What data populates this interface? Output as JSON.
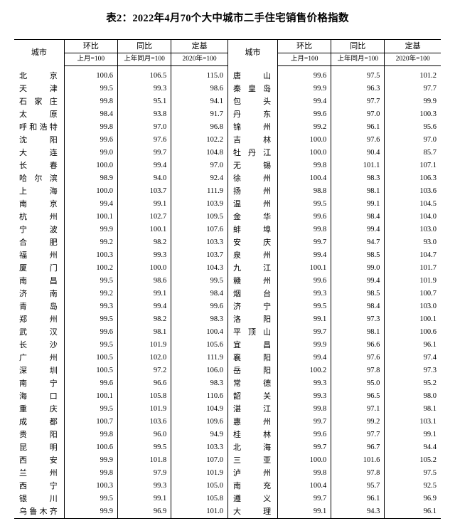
{
  "title": "表2：2022年4月70个大中城市二手住宅销售价格指数",
  "headers": {
    "city": "城市",
    "mom": "环比",
    "yoy": "同比",
    "base": "定基",
    "sub_mom": "上月=100",
    "sub_yoy": "上年同月=100",
    "sub_base": "2020年=100"
  },
  "left": [
    {
      "c": "北　　京",
      "m": "100.6",
      "y": "106.5",
      "b": "115.0"
    },
    {
      "c": "天　　津",
      "m": "99.5",
      "y": "99.3",
      "b": "98.6"
    },
    {
      "c": "石 家 庄",
      "m": "99.8",
      "y": "95.1",
      "b": "94.1"
    },
    {
      "c": "太　　原",
      "m": "98.4",
      "y": "93.8",
      "b": "91.7"
    },
    {
      "c": "呼和浩特",
      "m": "99.8",
      "y": "97.0",
      "b": "96.8"
    },
    {
      "c": "沈　　阳",
      "m": "99.6",
      "y": "97.6",
      "b": "102.2"
    },
    {
      "c": "大　　连",
      "m": "99.0",
      "y": "99.7",
      "b": "104.8"
    },
    {
      "c": "长　　春",
      "m": "100.0",
      "y": "99.4",
      "b": "97.0"
    },
    {
      "c": "哈 尔 滨",
      "m": "98.9",
      "y": "94.0",
      "b": "92.4"
    },
    {
      "c": "上　　海",
      "m": "100.0",
      "y": "103.7",
      "b": "111.9"
    },
    {
      "c": "南　　京",
      "m": "99.4",
      "y": "99.1",
      "b": "103.9"
    },
    {
      "c": "杭　　州",
      "m": "100.1",
      "y": "102.7",
      "b": "109.5"
    },
    {
      "c": "宁　　波",
      "m": "99.9",
      "y": "100.1",
      "b": "107.6"
    },
    {
      "c": "合　　肥",
      "m": "99.2",
      "y": "98.2",
      "b": "103.3"
    },
    {
      "c": "福　　州",
      "m": "100.3",
      "y": "99.3",
      "b": "103.7"
    },
    {
      "c": "厦　　门",
      "m": "100.2",
      "y": "100.0",
      "b": "104.3"
    },
    {
      "c": "南　　昌",
      "m": "99.5",
      "y": "98.6",
      "b": "99.5"
    },
    {
      "c": "济　　南",
      "m": "99.2",
      "y": "99.1",
      "b": "98.4"
    },
    {
      "c": "青　　岛",
      "m": "99.3",
      "y": "99.4",
      "b": "99.6"
    },
    {
      "c": "郑　　州",
      "m": "99.5",
      "y": "98.2",
      "b": "98.3"
    },
    {
      "c": "武　　汉",
      "m": "99.6",
      "y": "98.1",
      "b": "100.4"
    },
    {
      "c": "长　　沙",
      "m": "99.5",
      "y": "101.9",
      "b": "105.6"
    },
    {
      "c": "广　　州",
      "m": "100.5",
      "y": "102.0",
      "b": "111.9"
    },
    {
      "c": "深　　圳",
      "m": "100.5",
      "y": "97.2",
      "b": "106.0"
    },
    {
      "c": "南　　宁",
      "m": "99.6",
      "y": "96.6",
      "b": "98.3"
    },
    {
      "c": "海　　口",
      "m": "100.1",
      "y": "105.8",
      "b": "110.6"
    },
    {
      "c": "重　　庆",
      "m": "99.5",
      "y": "101.9",
      "b": "104.9"
    },
    {
      "c": "成　　都",
      "m": "100.7",
      "y": "103.6",
      "b": "109.6"
    },
    {
      "c": "贵　　阳",
      "m": "99.8",
      "y": "96.0",
      "b": "94.9"
    },
    {
      "c": "昆　　明",
      "m": "100.6",
      "y": "99.5",
      "b": "103.3"
    },
    {
      "c": "西　　安",
      "m": "99.9",
      "y": "101.8",
      "b": "107.0"
    },
    {
      "c": "兰　　州",
      "m": "99.8",
      "y": "97.9",
      "b": "101.9"
    },
    {
      "c": "西　　宁",
      "m": "100.3",
      "y": "99.3",
      "b": "105.0"
    },
    {
      "c": "银　　川",
      "m": "99.5",
      "y": "99.1",
      "b": "105.8"
    },
    {
      "c": "乌鲁木齐",
      "m": "99.9",
      "y": "96.9",
      "b": "101.0"
    }
  ],
  "right": [
    {
      "c": "唐　　山",
      "m": "99.6",
      "y": "97.5",
      "b": "101.2"
    },
    {
      "c": "秦 皇 岛",
      "m": "99.9",
      "y": "96.3",
      "b": "97.7"
    },
    {
      "c": "包　　头",
      "m": "99.4",
      "y": "97.7",
      "b": "99.9"
    },
    {
      "c": "丹　　东",
      "m": "99.6",
      "y": "97.0",
      "b": "100.3"
    },
    {
      "c": "锦　　州",
      "m": "99.2",
      "y": "96.1",
      "b": "95.6"
    },
    {
      "c": "吉　　林",
      "m": "100.0",
      "y": "97.6",
      "b": "97.0"
    },
    {
      "c": "牡 丹 江",
      "m": "100.0",
      "y": "90.4",
      "b": "85.7"
    },
    {
      "c": "无　　锡",
      "m": "99.8",
      "y": "101.1",
      "b": "107.1"
    },
    {
      "c": "徐　　州",
      "m": "100.4",
      "y": "98.3",
      "b": "106.3"
    },
    {
      "c": "扬　　州",
      "m": "98.8",
      "y": "98.1",
      "b": "103.6"
    },
    {
      "c": "温　　州",
      "m": "99.5",
      "y": "99.1",
      "b": "104.5"
    },
    {
      "c": "金　　华",
      "m": "99.6",
      "y": "98.4",
      "b": "104.0"
    },
    {
      "c": "蚌　　埠",
      "m": "99.8",
      "y": "99.4",
      "b": "103.0"
    },
    {
      "c": "安　　庆",
      "m": "99.7",
      "y": "94.7",
      "b": "93.0"
    },
    {
      "c": "泉　　州",
      "m": "99.4",
      "y": "98.5",
      "b": "104.7"
    },
    {
      "c": "九　　江",
      "m": "100.1",
      "y": "99.0",
      "b": "101.7"
    },
    {
      "c": "赣　　州",
      "m": "99.6",
      "y": "99.4",
      "b": "101.9"
    },
    {
      "c": "烟　　台",
      "m": "99.3",
      "y": "98.5",
      "b": "100.7"
    },
    {
      "c": "济　　宁",
      "m": "99.5",
      "y": "98.4",
      "b": "103.0"
    },
    {
      "c": "洛　　阳",
      "m": "99.1",
      "y": "97.3",
      "b": "100.1"
    },
    {
      "c": "平 顶 山",
      "m": "99.7",
      "y": "98.1",
      "b": "100.6"
    },
    {
      "c": "宜　　昌",
      "m": "99.9",
      "y": "96.6",
      "b": "96.1"
    },
    {
      "c": "襄　　阳",
      "m": "99.4",
      "y": "97.6",
      "b": "97.4"
    },
    {
      "c": "岳　　阳",
      "m": "100.2",
      "y": "97.8",
      "b": "97.3"
    },
    {
      "c": "常　　德",
      "m": "99.3",
      "y": "95.0",
      "b": "95.2"
    },
    {
      "c": "韶　　关",
      "m": "99.3",
      "y": "96.5",
      "b": "98.0"
    },
    {
      "c": "湛　　江",
      "m": "99.8",
      "y": "97.1",
      "b": "98.1"
    },
    {
      "c": "惠　　州",
      "m": "99.7",
      "y": "99.2",
      "b": "103.1"
    },
    {
      "c": "桂　　林",
      "m": "99.6",
      "y": "97.7",
      "b": "99.1"
    },
    {
      "c": "北　　海",
      "m": "99.7",
      "y": "96.7",
      "b": "94.4"
    },
    {
      "c": "三　　亚",
      "m": "100.0",
      "y": "101.6",
      "b": "105.2"
    },
    {
      "c": "泸　　州",
      "m": "99.8",
      "y": "97.8",
      "b": "97.5"
    },
    {
      "c": "南　　充",
      "m": "100.4",
      "y": "95.7",
      "b": "92.5"
    },
    {
      "c": "遵　　义",
      "m": "99.7",
      "y": "96.1",
      "b": "96.9"
    },
    {
      "c": "大　　理",
      "m": "99.1",
      "y": "94.3",
      "b": "96.1"
    }
  ]
}
